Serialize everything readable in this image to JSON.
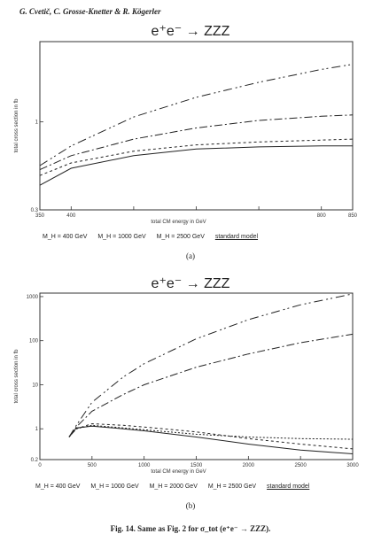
{
  "header": "G. Cvetič, C. Grosse-Knetter & R. Kögerler",
  "caption": "Fig. 14. Same as Fig. 2 for σ_tot (e⁺e⁻ → ZZZ).",
  "panels": [
    {
      "title": "e⁺e⁻  →  ZZZ",
      "sublabel": "(a)",
      "legend": [
        "M_H = 400 GeV",
        "M_H = 1000 GeV",
        "M_H = 2500 GeV",
        "standard model"
      ]
    },
    {
      "title": "e⁺e⁻  →  ZZZ",
      "sublabel": "(b)",
      "legend": [
        "M_H = 400 GeV",
        "M_H = 1000 GeV",
        "M_H = 2000 GeV",
        "M_H = 2500 GeV",
        "standard model"
      ]
    }
  ],
  "chart_data": [
    {
      "type": "line",
      "title": "e⁺e⁻ → ZZZ",
      "xlabel": "total CM energy in GeV",
      "ylabel": "total cross section in fb",
      "xlim": [
        350,
        850
      ],
      "ylim": [
        0.3,
        3
      ],
      "log_y": true,
      "xticks": [
        350,
        400,
        500,
        600,
        700,
        800,
        850
      ],
      "xtick_labels": [
        "350",
        "400",
        "",
        "",
        "",
        "800",
        "850"
      ],
      "yticks": [
        0.3,
        1
      ],
      "ytick_labels": [
        "0.3",
        "1"
      ],
      "series": [
        {
          "name": "M_H = 400 GeV",
          "dash": "3,3",
          "x": [
            350,
            400,
            500,
            600,
            700,
            800,
            850
          ],
          "y": [
            0.48,
            0.57,
            0.67,
            0.73,
            0.76,
            0.78,
            0.79
          ]
        },
        {
          "name": "M_H = 1000 GeV",
          "dash": "9,3,2,3",
          "x": [
            350,
            400,
            500,
            600,
            700,
            800,
            850
          ],
          "y": [
            0.52,
            0.63,
            0.79,
            0.92,
            1.02,
            1.08,
            1.1
          ]
        },
        {
          "name": "M_H = 2500 GeV",
          "dash": "10,4,2,3,2,4",
          "x": [
            350,
            400,
            500,
            600,
            700,
            800,
            850
          ],
          "y": [
            0.55,
            0.72,
            1.07,
            1.4,
            1.72,
            2.05,
            2.2
          ]
        },
        {
          "name": "standard model",
          "dash": "",
          "x": [
            350,
            400,
            500,
            600,
            700,
            800,
            850
          ],
          "y": [
            0.42,
            0.53,
            0.63,
            0.69,
            0.71,
            0.72,
            0.72
          ]
        }
      ]
    },
    {
      "type": "line",
      "title": "e⁺e⁻ → ZZZ",
      "xlabel": "total CM energy in GeV",
      "ylabel": "total cross section in fb",
      "xlim": [
        0,
        3000
      ],
      "ylim": [
        0.2,
        1200
      ],
      "log_y": true,
      "xticks": [
        0,
        500,
        1000,
        1500,
        2000,
        2500,
        3000
      ],
      "xtick_labels": [
        "0",
        "500",
        "1000",
        "1500",
        "2000",
        "2500",
        "3000"
      ],
      "yticks": [
        0.2,
        1,
        10,
        100,
        1000
      ],
      "ytick_labels": [
        "0.2",
        "1",
        "10",
        "100",
        "1000"
      ],
      "series": [
        {
          "name": "M_H = 400 GeV",
          "dash": "2,2",
          "x": [
            280,
            350,
            500,
            800,
            1000,
            1500,
            2000,
            2500,
            3000
          ],
          "y": [
            0.65,
            1.0,
            1.2,
            1.05,
            0.95,
            0.75,
            0.65,
            0.6,
            0.58
          ]
        },
        {
          "name": "M_H = 1000 GeV",
          "dash": "3,3",
          "x": [
            280,
            350,
            500,
            800,
            1000,
            1500,
            2000,
            2500,
            3000
          ],
          "y": [
            0.65,
            1.0,
            1.3,
            1.2,
            1.1,
            0.85,
            0.6,
            0.45,
            0.35
          ]
        },
        {
          "name": "M_H = 2000 GeV",
          "dash": "9,3,2,3",
          "x": [
            280,
            350,
            500,
            800,
            1000,
            1500,
            2000,
            2500,
            3000
          ],
          "y": [
            0.65,
            1.1,
            2.5,
            6,
            10,
            25,
            50,
            90,
            140
          ]
        },
        {
          "name": "M_H = 2500 GeV",
          "dash": "10,4,2,3,2,4",
          "x": [
            280,
            350,
            500,
            800,
            1000,
            1500,
            2000,
            2500,
            3000
          ],
          "y": [
            0.65,
            1.2,
            4,
            15,
            30,
            110,
            300,
            650,
            1150
          ]
        },
        {
          "name": "standard model",
          "dash": "",
          "x": [
            280,
            350,
            500,
            800,
            1000,
            1500,
            2000,
            2500,
            3000
          ],
          "y": [
            0.65,
            1.05,
            1.15,
            1.0,
            0.9,
            0.65,
            0.45,
            0.33,
            0.27
          ]
        }
      ]
    }
  ]
}
